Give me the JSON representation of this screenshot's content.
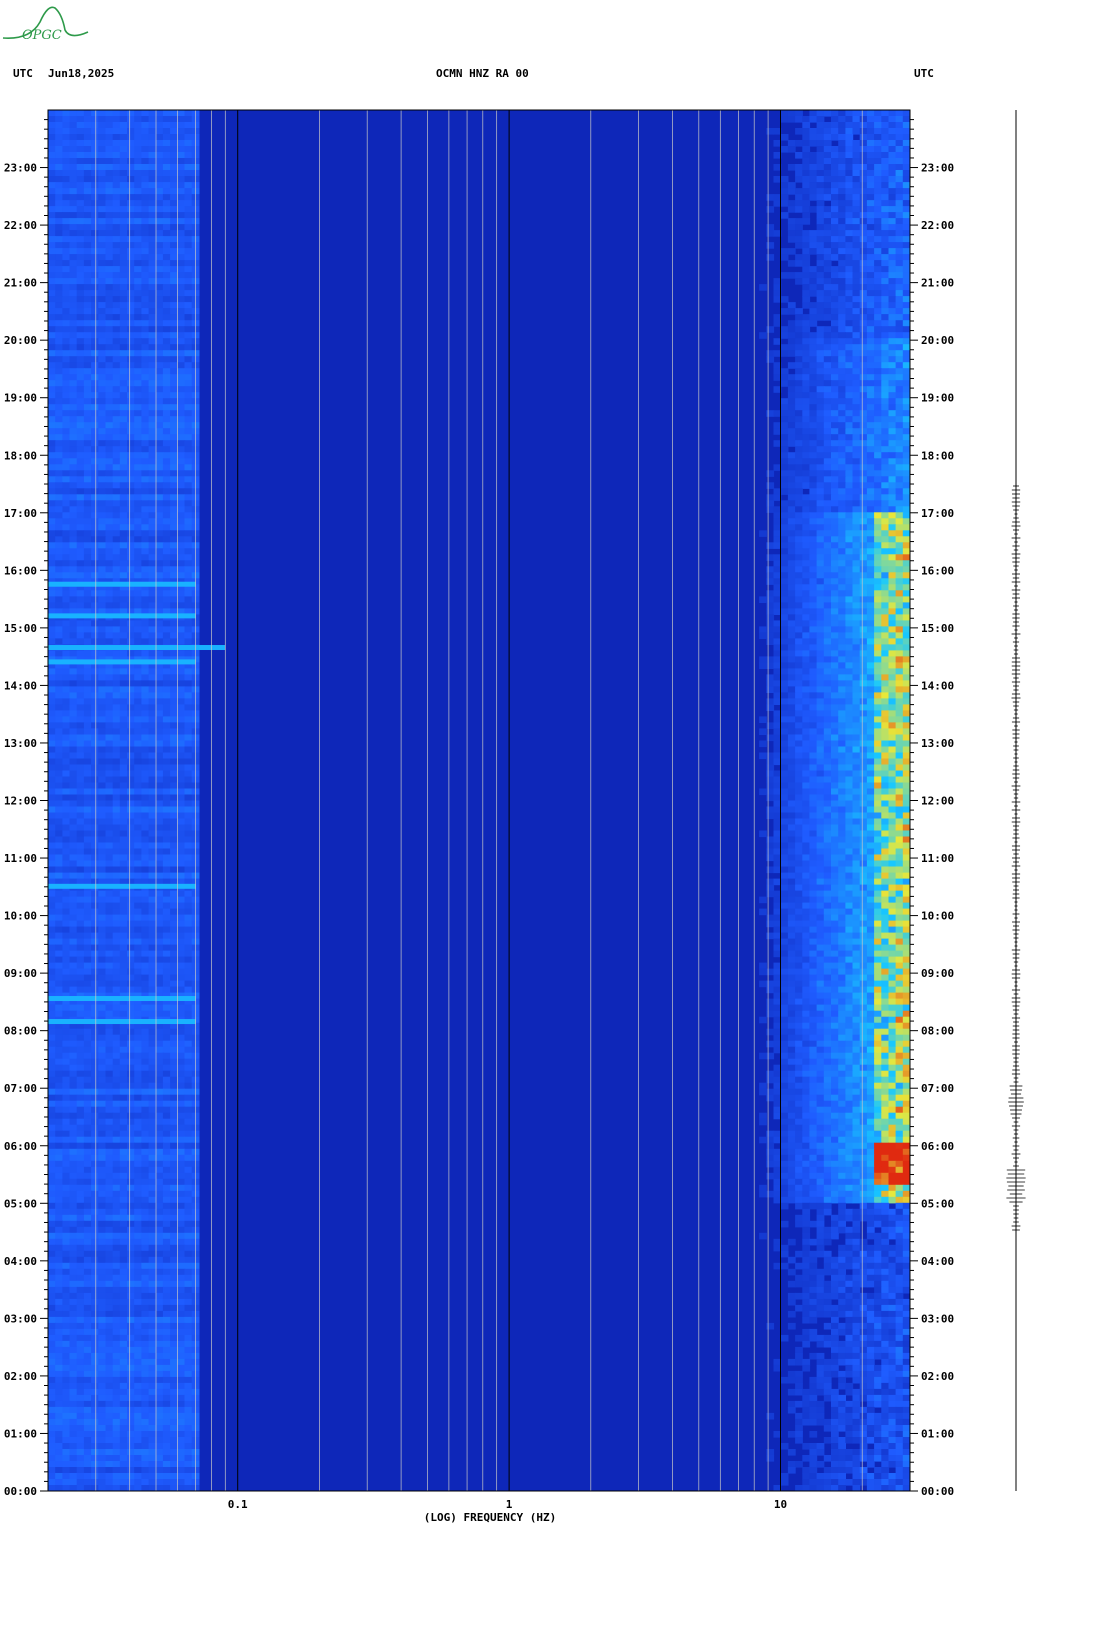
{
  "header": {
    "left_tz": "UTC",
    "date": "Jun18,2025",
    "station": "OCMN HNZ RA 00",
    "right_tz": "UTC"
  },
  "logo": {
    "text": "OPGC",
    "color": "#2e9a4a"
  },
  "chart_data": {
    "type": "heatmap",
    "title": "OCMN HNZ RA 00",
    "xlabel": "(LOG) FREQUENCY (HZ)",
    "x_scale": "log",
    "xlim": [
      0.02,
      30
    ],
    "x_tick_labels": [
      "0.1",
      "1",
      "10"
    ],
    "x_ticks": [
      0.1,
      1,
      10
    ],
    "y_scale": "time",
    "ylim": [
      "00:00",
      "24:00"
    ],
    "y_tick_labels": [
      "00:00",
      "01:00",
      "02:00",
      "03:00",
      "04:00",
      "05:00",
      "06:00",
      "07:00",
      "08:00",
      "09:00",
      "10:00",
      "11:00",
      "12:00",
      "13:00",
      "14:00",
      "15:00",
      "16:00",
      "17:00",
      "18:00",
      "19:00",
      "20:00",
      "21:00",
      "22:00",
      "23:00"
    ],
    "colormap": [
      "#0a1aa8",
      "#1f5cff",
      "#18c8ff",
      "#e8e83a",
      "#e02a10"
    ],
    "energetic_band_hz": [
      10,
      30
    ],
    "active_hours": [
      5,
      17
    ],
    "peak_hour": 5.7
  }
}
